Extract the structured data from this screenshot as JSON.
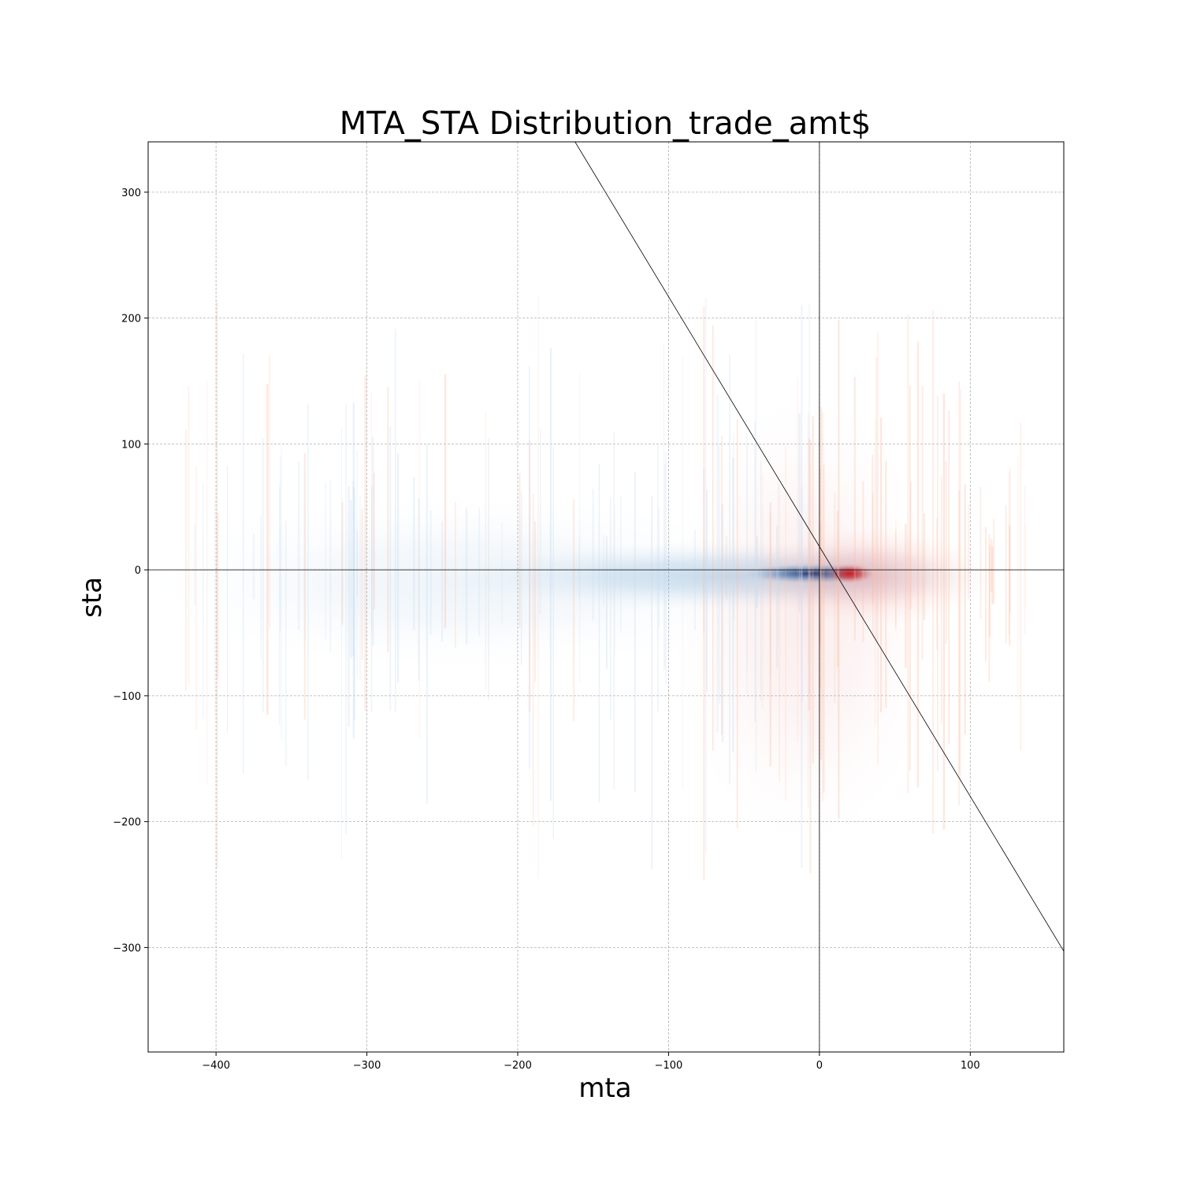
{
  "chart_data": {
    "type": "heatmap",
    "title": "MTA_STA Distribution_trade_amt$",
    "xlabel": "mta",
    "ylabel": "sta",
    "xlim": [
      -445,
      162
    ],
    "ylim": [
      -383,
      340
    ],
    "xticks": [
      -400,
      -300,
      -200,
      -100,
      0,
      100
    ],
    "yticks": [
      -300,
      -200,
      -100,
      0,
      100,
      200,
      300
    ],
    "xtick_labels": [
      "−400",
      "−300",
      "−200",
      "−100",
      "0",
      "100"
    ],
    "ytick_labels": [
      "−300",
      "−200",
      "−100",
      "0",
      "100",
      "200",
      "300"
    ],
    "grid": true,
    "reference_lines": [
      {
        "kind": "horizontal",
        "y": 0
      },
      {
        "kind": "vertical",
        "x": 0
      },
      {
        "kind": "diagonal",
        "points": [
          [
            -162,
            340
          ],
          [
            162,
            -303
          ]
        ]
      }
    ],
    "colormaps": {
      "negative_mta": "Blues",
      "positive_mta": "Reds",
      "blue_dark": "#08306b",
      "blue_mid": "#2171b5",
      "blue_light": "#c6dbef",
      "red_dark": "#cb181d",
      "red_light": "#fcbba1"
    },
    "density_clusters": [
      {
        "name": "core-negative",
        "x": -6,
        "y": -3,
        "sx": 22,
        "sy": 4,
        "intensity": 1.0,
        "color": "blue"
      },
      {
        "name": "wide-negative",
        "x": -60,
        "y": -5,
        "sx": 90,
        "sy": 14,
        "intensity": 0.25,
        "color": "blue"
      },
      {
        "name": "far-negative",
        "x": -230,
        "y": -10,
        "sx": 110,
        "sy": 35,
        "intensity": 0.08,
        "color": "blue"
      },
      {
        "name": "core-positive",
        "x": 20,
        "y": -3,
        "sx": 8,
        "sy": 4,
        "intensity": 0.95,
        "color": "red"
      },
      {
        "name": "wide-positive",
        "x": 35,
        "y": -5,
        "sx": 40,
        "sy": 20,
        "intensity": 0.2,
        "color": "red"
      },
      {
        "name": "vertical-positive",
        "x": -10,
        "y": -40,
        "sx": 45,
        "sy": 90,
        "intensity": 0.08,
        "color": "red"
      }
    ]
  }
}
